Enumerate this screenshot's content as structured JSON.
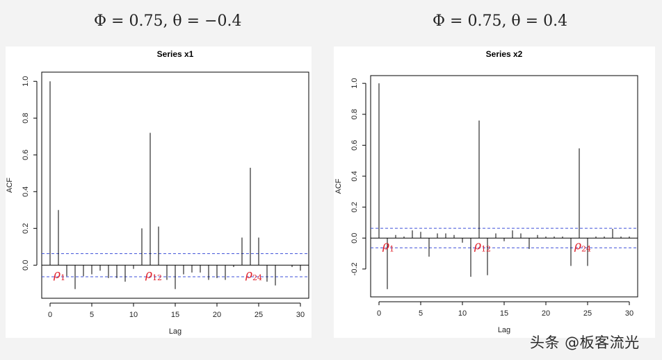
{
  "headings": {
    "left": "Φ = 0.75, θ = −0.4",
    "right": "Φ = 0.75, θ = 0.4"
  },
  "watermark": "头条 @板客流光",
  "chart_data": [
    {
      "type": "bar",
      "title": "Series  x1",
      "xlabel": "Lag",
      "ylabel": "ACF",
      "xlim": [
        -1,
        31
      ],
      "ylim": [
        -0.18,
        1.05
      ],
      "x_ticks": [
        0,
        5,
        10,
        15,
        20,
        25,
        30
      ],
      "y_ticks": [
        0.0,
        0.2,
        0.4,
        0.6,
        0.8,
        1.0
      ],
      "conf_bound": 0.063,
      "lags": [
        0,
        1,
        2,
        3,
        4,
        5,
        6,
        7,
        8,
        9,
        10,
        11,
        12,
        13,
        14,
        15,
        16,
        17,
        18,
        19,
        20,
        21,
        22,
        23,
        24,
        25,
        26,
        27,
        28,
        29,
        30
      ],
      "values": [
        1.0,
        0.3,
        -0.06,
        -0.13,
        -0.06,
        -0.05,
        -0.03,
        -0.07,
        -0.07,
        -0.09,
        -0.02,
        0.2,
        0.72,
        0.21,
        -0.08,
        -0.13,
        -0.05,
        -0.04,
        -0.04,
        -0.08,
        -0.07,
        -0.08,
        -0.01,
        0.15,
        0.53,
        0.15,
        -0.09,
        -0.11,
        0.0,
        -0.01,
        -0.03
      ],
      "annotations": [
        {
          "label": "ρ",
          "sub": "1",
          "lag": 1
        },
        {
          "label": "ρ",
          "sub": "12",
          "lag": 12
        },
        {
          "label": "ρ",
          "sub": "24",
          "lag": 24
        }
      ]
    },
    {
      "type": "bar",
      "title": "Series  x2",
      "xlabel": "Lag",
      "ylabel": "ACF",
      "xlim": [
        -1,
        31
      ],
      "ylim": [
        -0.38,
        1.05
      ],
      "x_ticks": [
        0,
        5,
        10,
        15,
        20,
        25,
        30
      ],
      "y_ticks": [
        -0.2,
        0.0,
        0.2,
        0.4,
        0.6,
        0.8,
        1.0
      ],
      "conf_bound": 0.063,
      "lags": [
        0,
        1,
        2,
        3,
        4,
        5,
        6,
        7,
        8,
        9,
        10,
        11,
        12,
        13,
        14,
        15,
        16,
        17,
        18,
        19,
        20,
        21,
        22,
        23,
        24,
        25,
        26,
        27,
        28,
        29,
        30
      ],
      "values": [
        1.0,
        -0.33,
        0.02,
        0.01,
        0.05,
        0.04,
        -0.12,
        0.03,
        0.03,
        0.02,
        -0.03,
        -0.25,
        0.76,
        -0.24,
        0.03,
        -0.02,
        0.05,
        0.03,
        -0.07,
        0.02,
        0.01,
        0.01,
        0.01,
        -0.18,
        0.58,
        -0.18,
        0.01,
        0.01,
        0.06,
        0.01,
        0.01
      ],
      "annotations": [
        {
          "label": "ρ",
          "sub": "1",
          "lag": 1
        },
        {
          "label": "ρ",
          "sub": "12",
          "lag": 12
        },
        {
          "label": "ρ",
          "sub": "24",
          "lag": 24
        }
      ]
    }
  ]
}
